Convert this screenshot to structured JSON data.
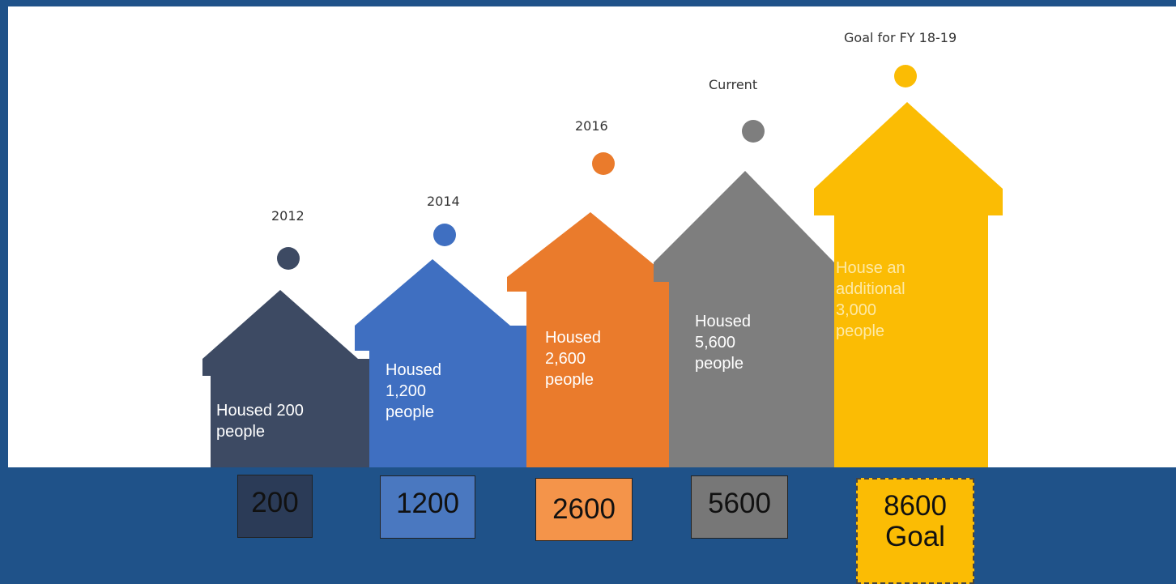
{
  "milestones": [
    {
      "label": "2012",
      "text": "Housed 200 people",
      "color": "#3d4a63",
      "value": "200",
      "value_color": "#2b3b57"
    },
    {
      "label": "2014",
      "text": "Housed 1,200 people",
      "color": "#3f6fc1",
      "value": "1200",
      "value_color": "#4a78c0"
    },
    {
      "label": "2016",
      "text": "Housed 2,600 people",
      "color": "#ea7b2c",
      "value": "2600",
      "value_color": "#f4944a"
    },
    {
      "label": "Current",
      "text": "Housed 5,600 people",
      "color": "#7e7e7e",
      "value": "5600",
      "value_color": "#777777"
    },
    {
      "label": "Goal for FY 18-19",
      "text": "House an additional 3,000 people",
      "color": "#fbbc04",
      "value": "8600",
      "value_sub": "Goal",
      "value_color": "#fbbc04"
    }
  ]
}
